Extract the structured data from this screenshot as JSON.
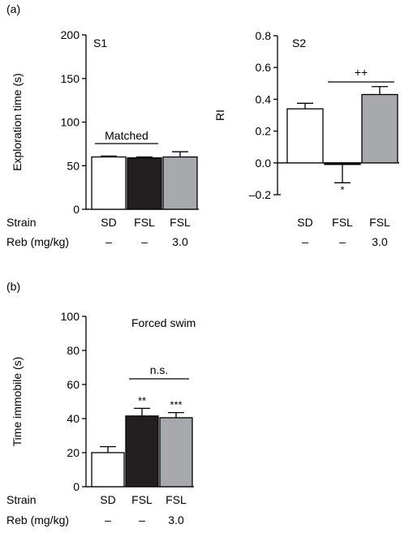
{
  "figure": {
    "panel_a_tag": "(a)",
    "panel_b_tag": "(b)",
    "row_strain": "Strain",
    "row_reb": "Reb (mg/kg)"
  },
  "chart_data": [
    {
      "type": "bar",
      "panel": "a",
      "title": "S1",
      "ylabel": "Exploration time (s)",
      "ylim": [
        0,
        200
      ],
      "yticks": [
        "0",
        "50",
        "100",
        "150",
        "200"
      ],
      "ytick_values": [
        0,
        50,
        100,
        150,
        200
      ],
      "categories": [
        "SD",
        "FSL",
        "FSL"
      ],
      "reb_doses": [
        "–",
        "–",
        "3.0"
      ],
      "values": [
        60,
        59,
        60
      ],
      "errors": [
        1,
        1,
        6
      ],
      "bar_colors": [
        "#ffffff",
        "#231f20",
        "#a7a9ac"
      ],
      "annotations": [
        {
          "text": "Matched",
          "from": 0,
          "to": 1
        }
      ],
      "bar_labels": [
        "",
        "",
        ""
      ]
    },
    {
      "type": "bar",
      "panel": "a",
      "title": "S2",
      "ylabel": "RI",
      "ylim": [
        -0.2,
        0.8
      ],
      "yticks": [
        "–0.2",
        "0.0",
        "0.2",
        "0.4",
        "0.6",
        "0.8"
      ],
      "ytick_values": [
        -0.2,
        0.0,
        0.2,
        0.4,
        0.6,
        0.8
      ],
      "categories": [
        "SD",
        "FSL",
        "FSL"
      ],
      "reb_doses": [
        "–",
        "–",
        "3.0"
      ],
      "values": [
        0.34,
        -0.01,
        0.43
      ],
      "errors": [
        0.035,
        0.115,
        0.05
      ],
      "bar_colors": [
        "#ffffff",
        "#231f20",
        "#a7a9ac"
      ],
      "annotations": [
        {
          "text": "++",
          "from": 1,
          "to": 2
        }
      ],
      "bar_labels": [
        "",
        "*",
        ""
      ]
    },
    {
      "type": "bar",
      "panel": "b",
      "title": "Forced swim",
      "ylabel": "Time immobile (s)",
      "ylim": [
        0,
        100
      ],
      "yticks": [
        "0",
        "20",
        "40",
        "60",
        "80",
        "100"
      ],
      "ytick_values": [
        0,
        20,
        40,
        60,
        80,
        100
      ],
      "categories": [
        "SD",
        "FSL",
        "FSL"
      ],
      "reb_doses": [
        "–",
        "–",
        "3.0"
      ],
      "values": [
        20,
        41.5,
        40.5
      ],
      "errors": [
        3.5,
        4.5,
        3
      ],
      "bar_colors": [
        "#ffffff",
        "#231f20",
        "#a7a9ac"
      ],
      "annotations": [
        {
          "text": "n.s.",
          "from": 1,
          "to": 2
        }
      ],
      "bar_labels": [
        "",
        "**",
        "***"
      ]
    }
  ]
}
